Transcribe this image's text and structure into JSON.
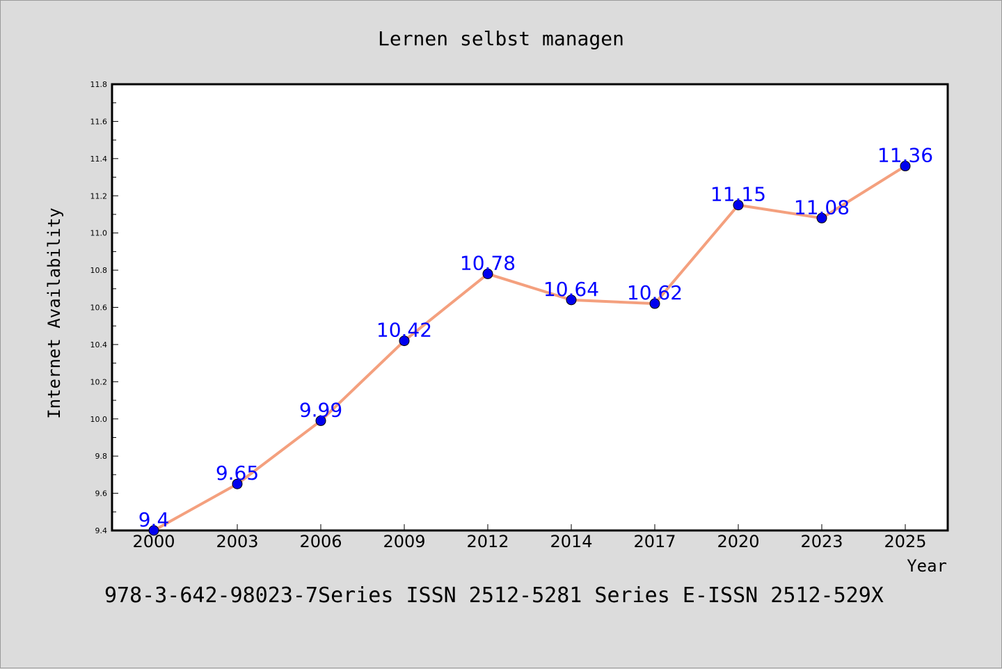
{
  "chart_data": {
    "type": "line",
    "title": "Lernen selbst managen",
    "xlabel": "Year",
    "ylabel": "Internet Availability",
    "categories": [
      "2000",
      "2003",
      "2006",
      "2009",
      "2012",
      "2014",
      "2017",
      "2020",
      "2023",
      "2025"
    ],
    "series": [
      {
        "values": [
          9.4,
          9.65,
          9.99,
          10.42,
          10.78,
          10.64,
          10.62,
          11.15,
          11.08,
          11.36
        ],
        "data_labels": [
          "9.4",
          "9.65",
          "9.99",
          "10.42",
          "10.78",
          "10.64",
          "10.62",
          "11.15",
          "11.08",
          "11.36"
        ]
      }
    ],
    "ylim": [
      9.4,
      11.8
    ],
    "yticks": [
      "9.4",
      "9.6",
      "9.8",
      "10.0",
      "10.2",
      "10.4",
      "10.6",
      "10.8",
      "11.0",
      "11.2",
      "11.4",
      "11.6",
      "11.8"
    ],
    "grid": false,
    "legend": "none",
    "footer": "978-3-642-98023-7Series ISSN 2512-5281 Series E-ISSN 2512-529X",
    "colors": {
      "background": "#dcdcdc",
      "plot_background": "#ffffff",
      "line": "#f4a07e",
      "marker": "#0000ee",
      "data_label": "#0000ff",
      "text": "#000000"
    }
  }
}
